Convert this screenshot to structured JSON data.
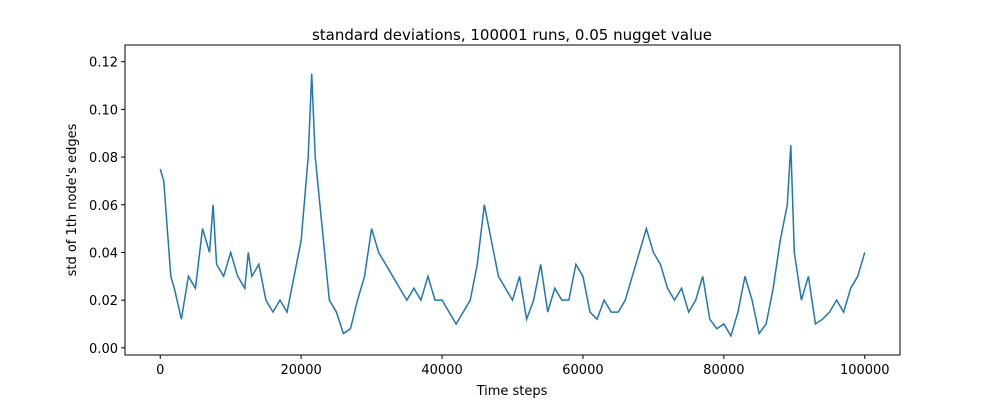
{
  "chart_data": {
    "type": "line",
    "title": "standard deviations, 100001 runs, 0.05 nugget value",
    "x_label": "Time steps",
    "y_label": "std of 1th node's edges",
    "x": [
      0,
      500,
      1000,
      1500,
      2000,
      3000,
      4000,
      5000,
      6000,
      7000,
      7500,
      8000,
      9000,
      10000,
      11000,
      12000,
      12500,
      13000,
      14000,
      15000,
      16000,
      17000,
      18000,
      19000,
      20000,
      21000,
      21500,
      22000,
      23000,
      24000,
      25000,
      26000,
      27000,
      28000,
      29000,
      30000,
      31000,
      32000,
      33000,
      34000,
      35000,
      36000,
      37000,
      38000,
      39000,
      40000,
      41000,
      42000,
      43000,
      44000,
      45000,
      46000,
      47000,
      48000,
      49000,
      50000,
      51000,
      52000,
      53000,
      54000,
      55000,
      56000,
      57000,
      58000,
      59000,
      60000,
      61000,
      62000,
      63000,
      64000,
      65000,
      66000,
      67000,
      68000,
      69000,
      70000,
      71000,
      72000,
      73000,
      74000,
      75000,
      76000,
      77000,
      78000,
      79000,
      80000,
      81000,
      82000,
      83000,
      84000,
      85000,
      86000,
      87000,
      88000,
      89000,
      89500,
      90000,
      91000,
      92000,
      93000,
      94000,
      95000,
      96000,
      97000,
      98000,
      99000,
      100000
    ],
    "series": [
      {
        "name": "std",
        "color": "#1f77b4",
        "values": [
          0.075,
          0.07,
          0.05,
          0.03,
          0.025,
          0.012,
          0.03,
          0.025,
          0.05,
          0.04,
          0.06,
          0.035,
          0.03,
          0.04,
          0.03,
          0.025,
          0.04,
          0.03,
          0.035,
          0.02,
          0.015,
          0.02,
          0.015,
          0.03,
          0.045,
          0.08,
          0.115,
          0.08,
          0.05,
          0.02,
          0.015,
          0.006,
          0.008,
          0.02,
          0.03,
          0.05,
          0.04,
          0.035,
          0.03,
          0.025,
          0.02,
          0.025,
          0.02,
          0.03,
          0.02,
          0.02,
          0.015,
          0.01,
          0.015,
          0.02,
          0.035,
          0.06,
          0.045,
          0.03,
          0.025,
          0.02,
          0.03,
          0.012,
          0.02,
          0.035,
          0.015,
          0.025,
          0.02,
          0.02,
          0.035,
          0.03,
          0.015,
          0.012,
          0.02,
          0.015,
          0.015,
          0.02,
          0.03,
          0.04,
          0.05,
          0.04,
          0.035,
          0.025,
          0.02,
          0.025,
          0.015,
          0.02,
          0.03,
          0.012,
          0.008,
          0.01,
          0.005,
          0.015,
          0.03,
          0.02,
          0.006,
          0.01,
          0.025,
          0.045,
          0.06,
          0.085,
          0.04,
          0.02,
          0.03,
          0.01,
          0.012,
          0.015,
          0.02,
          0.015,
          0.025,
          0.03,
          0.04
        ]
      }
    ],
    "xlim": [
      -5000,
      105000
    ],
    "ylim": [
      -0.003,
      0.127
    ],
    "xticks": [
      0,
      20000,
      40000,
      60000,
      80000,
      100000
    ],
    "yticks": [
      {
        "value": 0,
        "label": "0.00"
      },
      {
        "value": 0.02,
        "label": "0.02"
      },
      {
        "value": 0.04,
        "label": "0.04"
      },
      {
        "value": 0.06,
        "label": "0.06"
      },
      {
        "value": 0.08,
        "label": "0.08"
      },
      {
        "value": 0.1,
        "label": "0.10"
      },
      {
        "value": 0.12,
        "label": "0.12"
      }
    ]
  }
}
